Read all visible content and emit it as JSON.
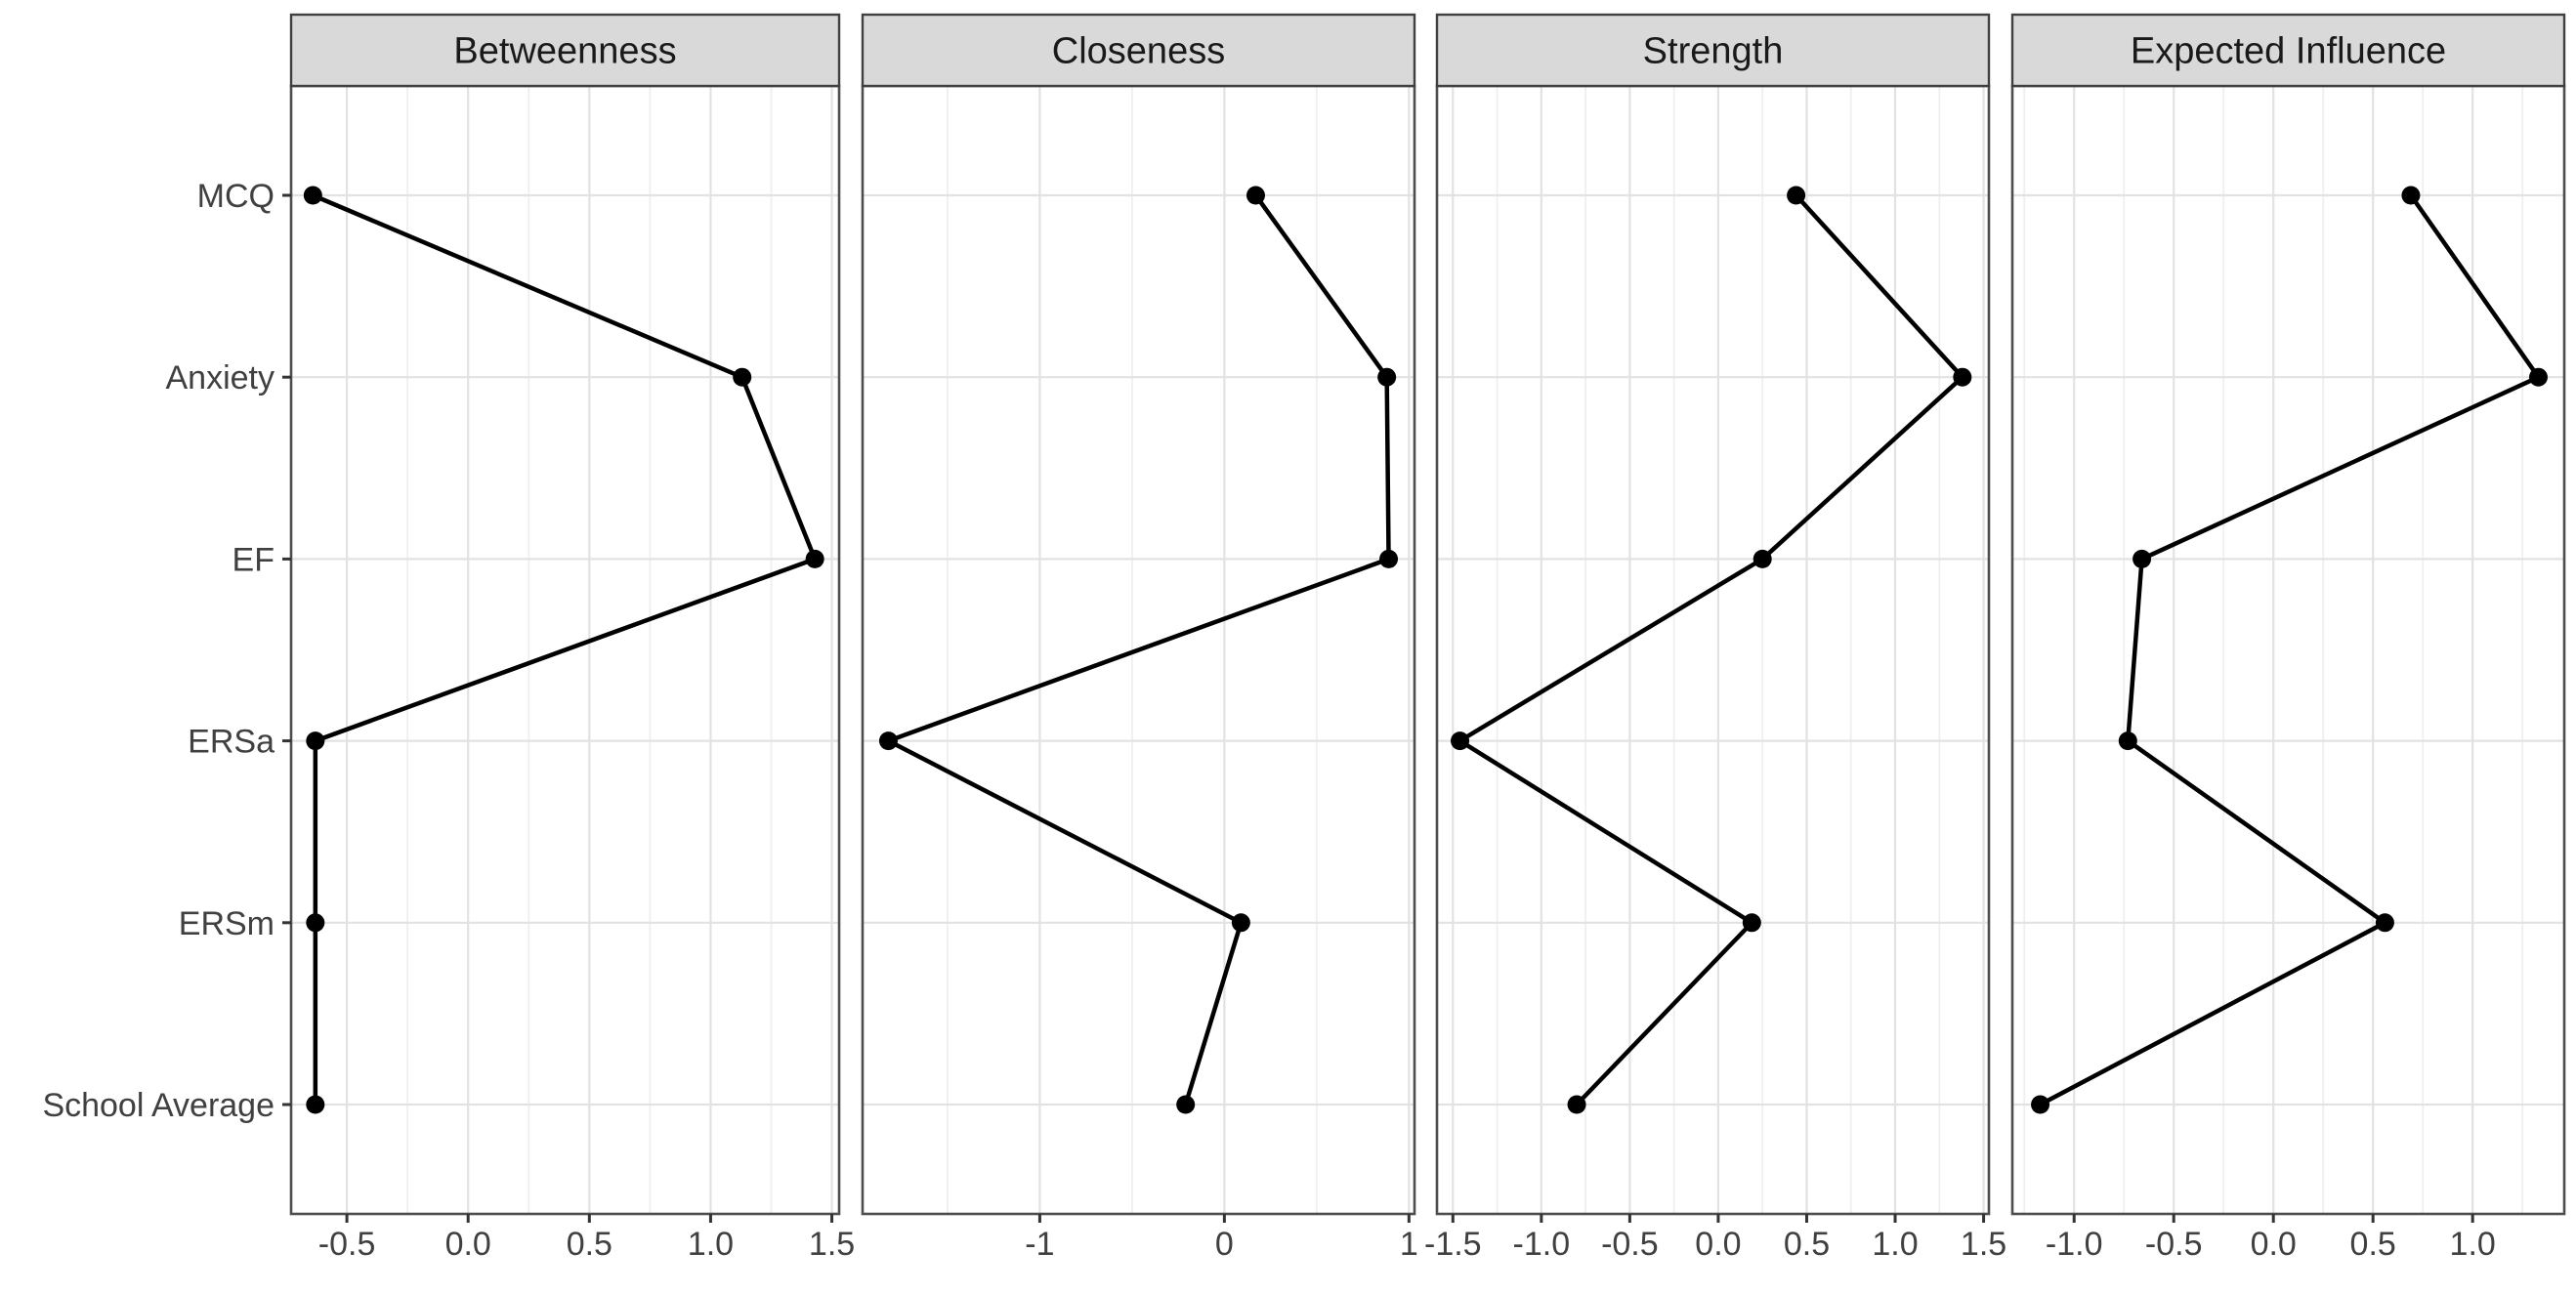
{
  "chart_data": {
    "type": "line",
    "title": "",
    "description": "Faceted centrality indices plot (dot-and-line), one panel per index, shared categorical y-axis",
    "categories": [
      "MCQ",
      "Anxiety",
      "EF",
      "ERSa",
      "ERSm",
      "School Average"
    ],
    "legend": "none",
    "grid": true,
    "facets": [
      {
        "title": "Betweenness",
        "x_domain": [
          -0.73,
          1.53
        ],
        "x_major_ticks": [
          -0.5,
          0.0,
          0.5,
          1.0,
          1.5
        ],
        "x_tick_labels": [
          "-0.5",
          "0.0",
          "0.5",
          "1.0",
          "1.5"
        ],
        "values": [
          -0.64,
          1.13,
          1.43,
          -0.63,
          -0.63,
          -0.63
        ]
      },
      {
        "title": "Closeness",
        "x_domain": [
          -1.96,
          1.03
        ],
        "x_major_ticks": [
          -1,
          0,
          1
        ],
        "x_tick_labels": [
          "-1",
          "0",
          "1"
        ],
        "values": [
          0.17,
          0.88,
          0.89,
          -1.82,
          0.09,
          -0.21
        ]
      },
      {
        "title": "Strength",
        "x_domain": [
          -1.59,
          1.53
        ],
        "x_major_ticks": [
          -1.5,
          -1.0,
          -0.5,
          0.0,
          0.5,
          1.0,
          1.5
        ],
        "x_tick_labels": [
          "-1.5",
          "-1.0",
          "-0.5",
          "0.0",
          "0.5",
          "1.0",
          "1.5"
        ],
        "values": [
          0.44,
          1.38,
          0.25,
          -1.46,
          0.19,
          -0.8
        ]
      },
      {
        "title": "Expected Influence",
        "x_domain": [
          -1.31,
          1.46
        ],
        "x_major_ticks": [
          -1.0,
          -0.5,
          0.0,
          0.5,
          1.0
        ],
        "x_tick_labels": [
          "-1.0",
          "-0.5",
          "0.0",
          "0.5",
          "1.0"
        ],
        "values": [
          0.69,
          1.33,
          -0.66,
          -0.73,
          0.56,
          -1.17
        ]
      }
    ]
  },
  "style": {
    "background": "#ffffff",
    "panel_bg": "#ffffff",
    "panel_border": "#4d4d4d",
    "strip_bg": "#d9d9d9",
    "strip_border": "#404040",
    "strip_text": "#1a1a1a",
    "grid_major": "#e2e2e2",
    "grid_minor": "#efefef",
    "axis_text": "#404040",
    "tick_mark": "#333333",
    "line": "#000000",
    "point": "#000000"
  }
}
